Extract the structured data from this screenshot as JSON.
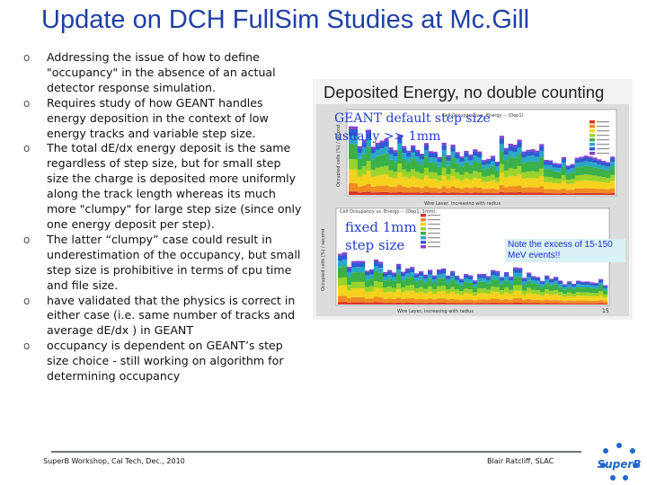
{
  "title": "Update on DCH FullSim Studies at Mc.Gill",
  "bullets": [
    "Addressing the issue of how to define \"occupancy\" in the absence of an actual detector response simulation.",
    "Requires study of how GEANT handles energy deposition in the context of low energy tracks and variable step size.",
    "The total dE/dx energy deposit is the same regardless of step size, but for small step size the charge is deposited more uniformly along the track length whereas its  much more \"clumpy\" for large step size (since only one energy deposit per step).",
    " The latter “clumpy” case could result in underestimation of the occupancy, but small step size is prohibitive in terms of cpu time and file size.",
    "have validated that the physics is correct in either case (i.e. same number of tracks and average dE/dx ) in GEANT",
    "occupancy is dependent on GEANT’s step size choice  - still working on algorithm for determining occupancy"
  ],
  "bullet_marker": "o",
  "figure": {
    "caption": "Deposited Energy, no double counting",
    "annotation_top_line1": "GEANT default step size",
    "annotation_top_line2": "usually >> 1mm",
    "annotation_bottom_line1": "fixed 1mm",
    "annotation_bottom_line2": "step size",
    "note_line1": "Note the excess of 15-150",
    "note_line2": "MeV events!!",
    "panel_top_title": "Cell Occupancy vs. Energy -- (Dep1)",
    "panel_bottom_title": "Cell Occupancy vs. Energy -- (Dep1, 1mm)",
    "ylabel_top": "Occupied cells (%) / second",
    "ylabel_bottom": "Occupied cells (%) / second",
    "xlabel_top": "Wire Layer, increasing with radius",
    "xlabel_bottom": "Wire Layer, increasing with radius",
    "page_number": "15",
    "colors": [
      "#d6342a",
      "#f08a24",
      "#f6d21e",
      "#9ad32a",
      "#3bb04a",
      "#2aa8c8",
      "#2f5bd0",
      "#8a3fd0"
    ]
  },
  "footer": {
    "left": "SuperB Workshop, Cal Tech, Dec., 2010",
    "right": "Blair Ratcliff, SLAC"
  },
  "logo": {
    "text": "SuperB",
    "color": "#1f66c8"
  }
}
